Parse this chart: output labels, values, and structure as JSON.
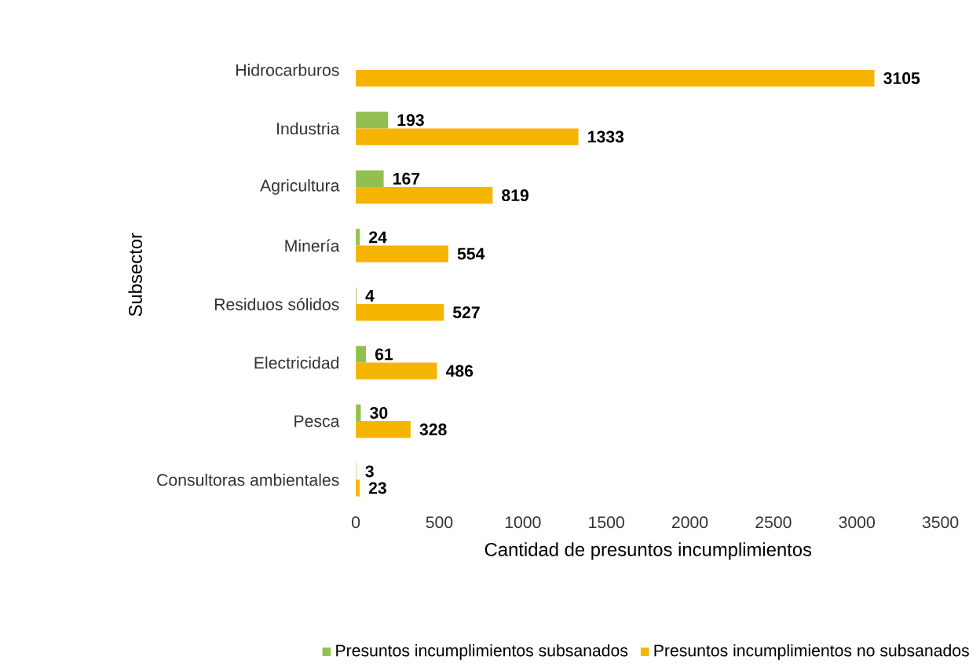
{
  "chart_data": {
    "type": "bar",
    "orientation": "horizontal",
    "xlabel": "Cantidad de presuntos incumplimientos",
    "ylabel": "Subsector",
    "categories": [
      "Hidrocarburos",
      "Industria",
      "Agricultura",
      "Minería",
      "Residuos sólidos",
      "Electricidad",
      "Pesca",
      "Consultoras ambientales"
    ],
    "series": [
      {
        "name": "Presuntos incumplimientos subsanados",
        "color": "#92c050",
        "values": [
          null,
          193,
          167,
          24,
          4,
          61,
          30,
          3
        ]
      },
      {
        "name": "Presuntos incumplimientos no subsanados",
        "color": "#f5b400",
        "values": [
          3105,
          1333,
          819,
          554,
          527,
          486,
          328,
          23
        ]
      }
    ],
    "xlim": [
      0,
      3500
    ],
    "xticks": [
      0,
      500,
      1000,
      1500,
      2000,
      2500,
      3000,
      3500
    ],
    "data_labels": true,
    "legend": "bottom",
    "grid": false
  }
}
